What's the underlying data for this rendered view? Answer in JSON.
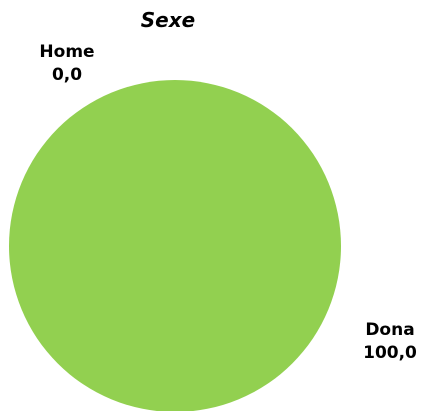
{
  "chart_data": {
    "type": "pie",
    "title": "Sexe",
    "slices": [
      {
        "label": "Home",
        "value": 0.0,
        "value_text": "0,0",
        "color": "#92d050"
      },
      {
        "label": "Dona",
        "value": 100.0,
        "value_text": "100,0",
        "color": "#92d050"
      }
    ]
  }
}
